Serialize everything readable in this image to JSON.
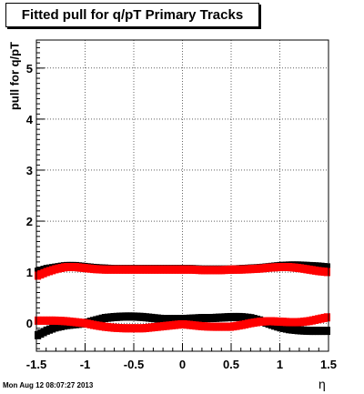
{
  "header": {
    "title": "Fitted pull for q/pT  Primary Tracks",
    "timestamp": "Mon Aug 12 08:07:27 2013"
  },
  "chart_data": {
    "type": "scatter",
    "title": "Fitted pull for q/pT  Primary Tracks",
    "xlabel": "η",
    "ylabel": "pull for q/pT",
    "xlim": [
      -1.5,
      1.5
    ],
    "ylim": [
      -0.55,
      5.55
    ],
    "xticks": [
      "-1.5",
      "-1",
      "-0.5",
      "0",
      "0.5",
      "1",
      "1.5"
    ],
    "xtick_values": [
      -1.5,
      -1,
      -0.5,
      0,
      0.5,
      1,
      1.5
    ],
    "yticks": [
      "0",
      "1",
      "2",
      "3",
      "4",
      "5"
    ],
    "ytick_values": [
      0,
      1,
      2,
      3,
      4,
      5
    ],
    "grid": true,
    "colors": {
      "black": "#000000",
      "red": "#ff0000"
    },
    "series": [
      {
        "color": "black",
        "x": [
          -1.5,
          -1.4,
          -1.3,
          -1.2,
          -1.1,
          -1.0,
          -0.9,
          -0.8,
          -0.7,
          -0.6,
          -0.5,
          -0.4,
          -0.3,
          -0.2,
          -0.1,
          0.0,
          0.1,
          0.2,
          0.3,
          0.4,
          0.5,
          0.6,
          0.7,
          0.8,
          0.9,
          1.0,
          1.1,
          1.2,
          1.3,
          1.4,
          1.5
        ],
        "y": [
          1.0,
          1.06,
          1.09,
          1.12,
          1.12,
          1.1,
          1.08,
          1.07,
          1.06,
          1.06,
          1.06,
          1.06,
          1.06,
          1.06,
          1.06,
          1.06,
          1.06,
          1.05,
          1.05,
          1.05,
          1.05,
          1.06,
          1.07,
          1.08,
          1.1,
          1.12,
          1.13,
          1.13,
          1.12,
          1.11,
          1.09
        ]
      },
      {
        "color": "red",
        "x": [
          -1.5,
          -1.4,
          -1.3,
          -1.2,
          -1.1,
          -1.0,
          -0.9,
          -0.8,
          -0.7,
          -0.6,
          -0.5,
          -0.4,
          -0.3,
          -0.2,
          -0.1,
          0.0,
          0.1,
          0.2,
          0.3,
          0.4,
          0.5,
          0.6,
          0.7,
          0.8,
          0.9,
          1.0,
          1.1,
          1.2,
          1.3,
          1.4,
          1.5
        ],
        "y": [
          0.92,
          1.0,
          1.06,
          1.1,
          1.1,
          1.08,
          1.06,
          1.05,
          1.05,
          1.05,
          1.05,
          1.05,
          1.05,
          1.05,
          1.05,
          1.05,
          1.05,
          1.04,
          1.04,
          1.04,
          1.05,
          1.05,
          1.06,
          1.07,
          1.09,
          1.1,
          1.1,
          1.08,
          1.05,
          1.02,
          1.0
        ]
      },
      {
        "color": "black",
        "x": [
          -1.5,
          -1.4,
          -1.3,
          -1.2,
          -1.1,
          -1.0,
          -0.9,
          -0.8,
          -0.7,
          -0.6,
          -0.5,
          -0.4,
          -0.3,
          -0.2,
          -0.1,
          0.0,
          0.1,
          0.2,
          0.3,
          0.4,
          0.5,
          0.6,
          0.7,
          0.8,
          0.9,
          1.0,
          1.1,
          1.2,
          1.3,
          1.4,
          1.5
        ],
        "y": [
          -0.25,
          -0.15,
          -0.08,
          -0.04,
          -0.02,
          0.0,
          0.05,
          0.1,
          0.12,
          0.13,
          0.13,
          0.12,
          0.1,
          0.08,
          0.08,
          0.08,
          0.09,
          0.1,
          0.1,
          0.11,
          0.12,
          0.12,
          0.1,
          0.05,
          -0.02,
          -0.08,
          -0.12,
          -0.14,
          -0.15,
          -0.15,
          -0.15
        ]
      },
      {
        "color": "red",
        "x": [
          -1.5,
          -1.4,
          -1.3,
          -1.2,
          -1.1,
          -1.0,
          -0.9,
          -0.8,
          -0.7,
          -0.6,
          -0.5,
          -0.4,
          -0.3,
          -0.2,
          -0.1,
          0.0,
          0.1,
          0.2,
          0.3,
          0.4,
          0.5,
          0.6,
          0.7,
          0.8,
          0.9,
          1.0,
          1.1,
          1.2,
          1.3,
          1.4,
          1.5
        ],
        "y": [
          0.05,
          0.05,
          0.05,
          0.04,
          0.02,
          0.0,
          -0.04,
          -0.07,
          -0.09,
          -0.1,
          -0.1,
          -0.1,
          -0.08,
          -0.06,
          -0.04,
          -0.02,
          -0.04,
          -0.06,
          -0.07,
          -0.07,
          -0.07,
          -0.04,
          0.0,
          0.03,
          0.04,
          0.03,
          0.02,
          0.02,
          0.04,
          0.08,
          0.12
        ]
      }
    ]
  }
}
